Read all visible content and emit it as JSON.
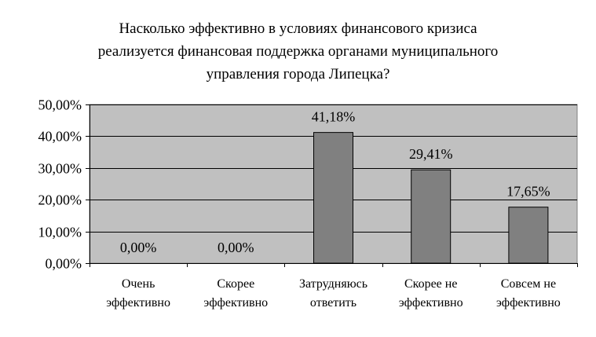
{
  "chart_data": {
    "type": "bar",
    "title_lines": [
      "Насколько эффективно в условиях финансового кризиса",
      "реализуется финансовая поддержка органами муниципального",
      "управления города Липецка?"
    ],
    "categories": [
      [
        "Очень",
        "эффективно"
      ],
      [
        "Скорее",
        "эффективно"
      ],
      [
        "Затрудняюсь",
        "ответить"
      ],
      [
        "Скорее не",
        "эффективно"
      ],
      [
        "Совсем не",
        "эффективно"
      ]
    ],
    "values": [
      0.0,
      0.0,
      41.18,
      29.41,
      17.65
    ],
    "data_labels": [
      "0,00%",
      "0,00%",
      "41,18%",
      "29,41%",
      "17,65%"
    ],
    "yticks": [
      0,
      10,
      20,
      30,
      40,
      50
    ],
    "ytick_labels": [
      "0,00%",
      "10,00%",
      "20,00%",
      "30,00%",
      "40,00%",
      "50,00%"
    ],
    "ylim": [
      0,
      50
    ],
    "xlabel": "",
    "ylabel": "",
    "grid": true,
    "legend": "none",
    "colors": {
      "plot_bg": "#c0c0c0",
      "bar": "#808080",
      "grid": "#000000",
      "axis": "#808080"
    }
  }
}
